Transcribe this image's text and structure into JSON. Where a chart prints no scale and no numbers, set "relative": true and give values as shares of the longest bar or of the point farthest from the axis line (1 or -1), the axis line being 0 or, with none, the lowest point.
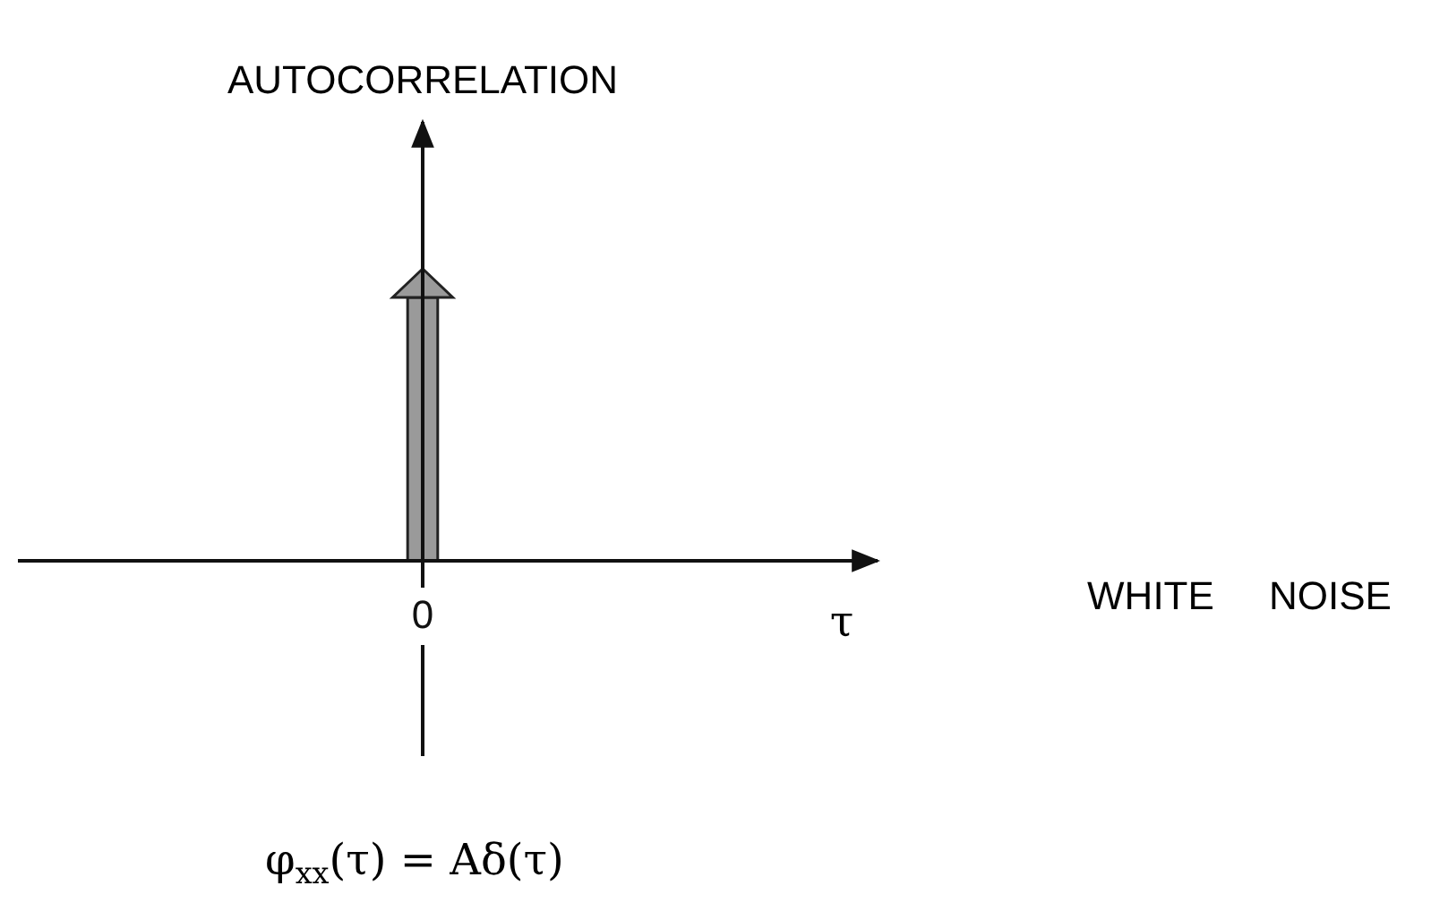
{
  "chart_data": {
    "type": "bar",
    "relative": true,
    "categories": [
      "0"
    ],
    "values": [
      1
    ],
    "color": "#9a9a9a",
    "annotations": [
      "AUTOCORRELATION",
      "τ",
      "WHITE     NOISE",
      "φ$_{xx}$(τ) = Aδ(τ)"
    ]
  }
}
